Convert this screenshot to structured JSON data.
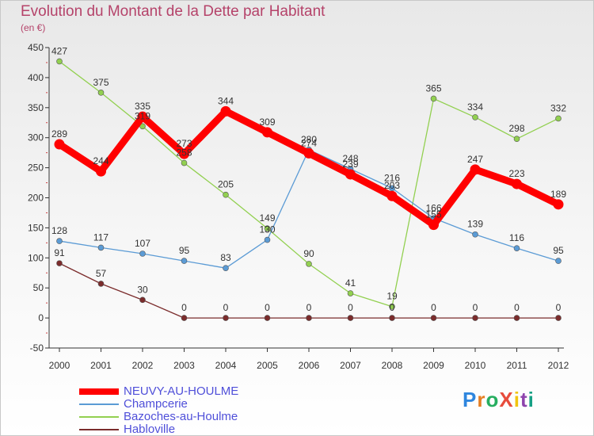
{
  "title": "Evolution du Montant de la Dette par Habitant",
  "unit": "(en €)",
  "logo": "ProXiti",
  "chart_data": {
    "type": "line",
    "x": [
      "2000",
      "2001",
      "2002",
      "2003",
      "2004",
      "2005",
      "2006",
      "2007",
      "2008",
      "2009",
      "2010",
      "2011",
      "2012"
    ],
    "y_ticks": [
      -50,
      0,
      50,
      100,
      150,
      200,
      250,
      300,
      350,
      400,
      450
    ],
    "ylim": [
      -50,
      450
    ],
    "grid": false,
    "legend": "bottom-left",
    "series": [
      {
        "name": "NEUVY-AU-HOULME",
        "color": "#ff0000",
        "values": [
          289,
          244,
          335,
          273,
          344,
          309,
          274,
          239,
          203,
          155,
          247,
          223,
          189
        ],
        "labels": [
          "289",
          "244",
          "335",
          "273",
          "344",
          "309",
          "274",
          "239",
          "203",
          "155",
          "247",
          "223",
          "189"
        ]
      },
      {
        "name": "Champcerie",
        "color": "#5b9bd5",
        "values": [
          128,
          117,
          107,
          95,
          83,
          130,
          280,
          248,
          216,
          166,
          139,
          116,
          95
        ],
        "labels": [
          "128",
          "117",
          "107",
          "95",
          "83",
          "130",
          "280",
          "248",
          "216",
          "166",
          "139",
          "116",
          "95"
        ]
      },
      {
        "name": "Bazoches-au-Houlme",
        "color": "#92d050",
        "values": [
          427,
          375,
          319,
          258,
          205,
          149,
          90,
          41,
          19,
          365,
          334,
          298,
          332
        ],
        "labels": [
          "427",
          "375",
          "319",
          "258",
          "205",
          "149",
          "90",
          "41",
          "19",
          "365",
          "334",
          "298",
          "332"
        ]
      },
      {
        "name": "Habloville",
        "color": "#7b2c2c",
        "values": [
          91,
          57,
          30,
          0,
          0,
          0,
          0,
          0,
          0,
          0,
          0,
          0,
          0
        ],
        "labels": [
          "91",
          "57",
          "30",
          "0",
          "0",
          "0",
          "0",
          "0",
          "0",
          "0",
          "0",
          "0",
          "0"
        ]
      }
    ]
  }
}
